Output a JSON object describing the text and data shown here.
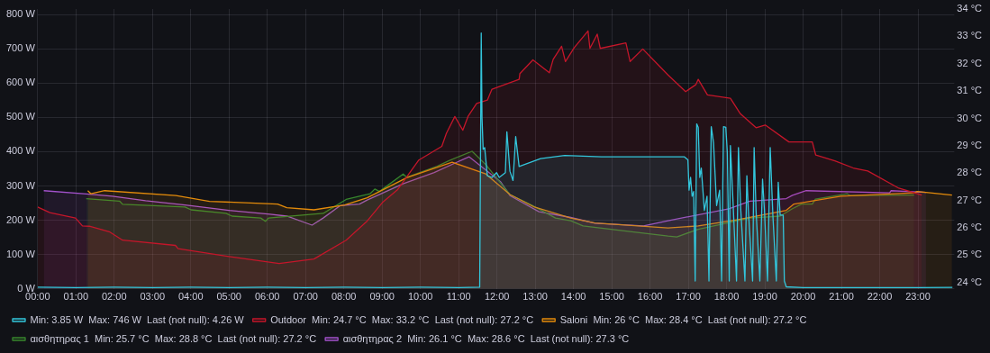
{
  "chart_data": {
    "type": "area",
    "grid": true,
    "legend": "bottom",
    "marker": "none",
    "line_style": "solid",
    "xlim": [
      0,
      23.95
    ],
    "xticks": [
      {
        "value": 0,
        "label": "00:00"
      },
      {
        "value": 1,
        "label": "01:00"
      },
      {
        "value": 2,
        "label": "02:00"
      },
      {
        "value": 3,
        "label": "03:00"
      },
      {
        "value": 4,
        "label": "04:00"
      },
      {
        "value": 5,
        "label": "05:00"
      },
      {
        "value": 6,
        "label": "06:00"
      },
      {
        "value": 7,
        "label": "07:00"
      },
      {
        "value": 8,
        "label": "08:00"
      },
      {
        "value": 9,
        "label": "09:00"
      },
      {
        "value": 10,
        "label": "10:00"
      },
      {
        "value": 11,
        "label": "11:00"
      },
      {
        "value": 12,
        "label": "12:00"
      },
      {
        "value": 13,
        "label": "13:00"
      },
      {
        "value": 14,
        "label": "14:00"
      },
      {
        "value": 15,
        "label": "15:00"
      },
      {
        "value": 16,
        "label": "16:00"
      },
      {
        "value": 17,
        "label": "17:00"
      },
      {
        "value": 18,
        "label": "18:00"
      },
      {
        "value": 19,
        "label": "19:00"
      },
      {
        "value": 20,
        "label": "20:00"
      },
      {
        "value": 21,
        "label": "21:00"
      },
      {
        "value": 22,
        "label": "22:00"
      },
      {
        "value": 23,
        "label": "23:00"
      }
    ],
    "ylim": [
      0,
      816
    ],
    "yticks": [
      {
        "value": 0,
        "label": "0 W"
      },
      {
        "value": 100,
        "label": "100 W"
      },
      {
        "value": 200,
        "label": "200 W"
      },
      {
        "value": 300,
        "label": "300 W"
      },
      {
        "value": 400,
        "label": "400 W"
      },
      {
        "value": 500,
        "label": "500 W"
      },
      {
        "value": 600,
        "label": "600 W"
      },
      {
        "value": 700,
        "label": "700 W"
      },
      {
        "value": 800,
        "label": "800 W"
      }
    ],
    "y2lim": [
      23.77,
      34
    ],
    "y2ticks": [
      {
        "value": 24,
        "label": "24 °C"
      },
      {
        "value": 25,
        "label": "25 °C"
      },
      {
        "value": 26,
        "label": "26 °C"
      },
      {
        "value": 27,
        "label": "27 °C"
      },
      {
        "value": 28,
        "label": "28 °C"
      },
      {
        "value": 29,
        "label": "29 °C"
      },
      {
        "value": 30,
        "label": "30 °C"
      },
      {
        "value": 31,
        "label": "31 °C"
      },
      {
        "value": 32,
        "label": "32 °C"
      },
      {
        "value": 33,
        "label": "33 °C"
      },
      {
        "value": 34,
        "label": "34 °C"
      }
    ],
    "series": [
      {
        "name": "Min: 3.85 W  Max: 746 W  Last (not null): 4.26 W",
        "color": "#33c6dc",
        "axis": "y",
        "x": [
          0,
          1,
          2,
          3,
          4,
          5,
          6,
          7,
          8,
          9,
          10,
          11,
          11.55,
          11.59,
          11.61,
          11.64,
          11.68,
          11.75,
          11.87,
          11.99,
          12.06,
          12.22,
          12.26,
          12.34,
          12.42,
          12.49,
          12.58,
          13.14,
          13.77,
          14.73,
          16.47,
          16.9,
          16.99,
          17.02,
          17.06,
          17.1,
          17.14,
          17.18,
          17.22,
          17.26,
          17.3,
          17.34,
          17.42,
          17.49,
          17.54,
          17.6,
          17.66,
          17.74,
          17.82,
          17.87,
          17.92,
          17.98,
          18.02,
          18.07,
          18.1,
          18.17,
          18.26,
          18.31,
          18.37,
          18.48,
          18.53,
          18.57,
          18.68,
          18.72,
          18.77,
          18.87,
          18.94,
          18.99,
          19.07,
          19.14,
          19.21,
          19.3,
          19.35,
          19.4,
          19.48,
          19.51,
          19.56,
          20,
          21,
          22,
          23,
          23.9
        ],
        "values": [
          5,
          4,
          5,
          4,
          5,
          4,
          5,
          4,
          5,
          4,
          5,
          4,
          5,
          746,
          499,
          407,
          412,
          330,
          325,
          339,
          325,
          339,
          458,
          343,
          316,
          444,
          357,
          380,
          389,
          385,
          385,
          385,
          376,
          288,
          325,
          270,
          284,
          23,
          481,
          471,
          325,
          352,
          229,
          270,
          23,
          473,
          426,
          243,
          288,
          23,
          473,
          471,
          398,
          23,
          418,
          252,
          23,
          412,
          234,
          23,
          330,
          229,
          23,
          412,
          229,
          23,
          320,
          229,
          23,
          412,
          215,
          23,
          311,
          215,
          215,
          23,
          6,
          4,
          4,
          4,
          4,
          4.26
        ]
      },
      {
        "name": "Outdoor  Min: 24.7 °C  Max: 33.2 °C  Last (not null): 27.2 °C",
        "color": "#c4162a",
        "axis": "y2",
        "x": [
          0,
          0.32,
          0.99,
          1.17,
          1.35,
          1.87,
          2.22,
          3.6,
          3.67,
          5.0,
          6.31,
          7.22,
          8.06,
          8.61,
          9.01,
          9.4,
          9.96,
          10.56,
          10.68,
          10.9,
          11.11,
          11.25,
          11.47,
          11.75,
          11.87,
          12.58,
          12.6,
          12.94,
          13.37,
          13.47,
          13.69,
          13.79,
          14.02,
          14.38,
          14.43,
          14.62,
          14.7,
          15.37,
          15.48,
          15.81,
          16.19,
          16.47,
          16.93,
          17.2,
          17.26,
          17.5,
          18.1,
          18.36,
          18.77,
          19.01,
          19.63,
          20.24,
          20.33,
          20.83,
          21.31,
          21.69,
          22.5,
          23.1
        ],
        "values": [
          26.76,
          26.56,
          26.36,
          26.07,
          26.06,
          25.86,
          25.55,
          25.36,
          25.24,
          24.95,
          24.7,
          24.86,
          25.55,
          26.25,
          26.93,
          27.39,
          28.48,
          28.98,
          29.46,
          30.07,
          29.57,
          30.09,
          30.55,
          30.67,
          31.07,
          31.43,
          31.64,
          32.14,
          31.67,
          32.16,
          32.64,
          32.08,
          32.59,
          33.2,
          32.56,
          33.08,
          32.56,
          32.76,
          32.08,
          32.54,
          31.99,
          31.59,
          30.98,
          31.24,
          31.43,
          30.86,
          30.74,
          30.17,
          29.66,
          29.76,
          29.14,
          29.14,
          28.66,
          28.45,
          28.19,
          28.08,
          27.45,
          27.2
        ]
      },
      {
        "name": "Saloni  Min: 26 °C  Max: 28.4 °C  Last (not null): 27.2 °C",
        "color": "#e38b0b",
        "axis": "y2",
        "x": [
          1.31,
          1.39,
          1.75,
          3.61,
          4.49,
          6.27,
          6.51,
          7.22,
          8.02,
          8.61,
          9.64,
          10.83,
          11.71,
          12.34,
          12.98,
          13.93,
          14.56,
          16.47,
          17.26,
          18.3,
          19.56,
          19.76,
          20.28,
          20.99,
          22.9,
          22.98,
          23.89
        ],
        "values": [
          27.36,
          27.25,
          27.36,
          27.18,
          26.97,
          26.87,
          26.74,
          26.66,
          26.84,
          27.1,
          27.83,
          28.4,
          27.97,
          27.22,
          26.76,
          26.36,
          26.18,
          26.0,
          26.07,
          26.3,
          26.64,
          26.87,
          26.99,
          27.16,
          27.28,
          27.33,
          27.2
        ]
      },
      {
        "name": "αισθητηρας 1  Min: 25.7 °C  Max: 28.8 °C  Last (not null): 27.2 °C",
        "color": "#37872d",
        "axis": "y2",
        "x": [
          1.27,
          2.14,
          2.22,
          3.85,
          4.01,
          4.92,
          5.08,
          5.83,
          5.95,
          6.03,
          7.46,
          8.06,
          8.61,
          8.69,
          8.81,
          8.93,
          9.55,
          9.64,
          10.44,
          10.75,
          11.35,
          11.71,
          12.34,
          12.9,
          13.53,
          13.93,
          14.25,
          16.47,
          16.7,
          17.26,
          18.61,
          19.4,
          19.72,
          19.96,
          20.24,
          20.32,
          21.15,
          21.23,
          22.9
        ],
        "values": [
          27.07,
          26.98,
          26.86,
          26.76,
          26.66,
          26.53,
          26.43,
          26.36,
          26.24,
          26.36,
          26.53,
          27.04,
          27.22,
          27.25,
          27.42,
          27.33,
          27.97,
          27.85,
          28.25,
          28.46,
          28.8,
          28.31,
          27.22,
          26.84,
          26.36,
          26.26,
          26.07,
          25.7,
          25.67,
          25.95,
          26.36,
          26.43,
          26.7,
          26.87,
          26.87,
          27.05,
          27.25,
          27.18,
          27.2
        ]
      },
      {
        "name": "αισθητηρας 2  Min: 26.1 °C  Max: 28.6 °C  Last (not null): 27.3 °C",
        "color": "#a352cc",
        "axis": "y2",
        "x": [
          0.16,
          1.27,
          1.95,
          2.82,
          3.85,
          5.0,
          6.07,
          6.51,
          7.17,
          7.46,
          7.9,
          8.41,
          8.61,
          9.56,
          10.36,
          11.27,
          12.1,
          12.34,
          13.1,
          13.93,
          14.56,
          15.83,
          16.47,
          18.06,
          18.61,
          19.56,
          19.72,
          20.08,
          22.26,
          22.3,
          23.21
        ],
        "values": [
          27.36,
          27.24,
          27.16,
          26.99,
          26.84,
          26.64,
          26.5,
          26.43,
          26.1,
          26.36,
          26.81,
          26.87,
          27.02,
          27.62,
          28.02,
          28.6,
          27.68,
          27.18,
          26.59,
          26.38,
          26.17,
          26.07,
          26.26,
          26.7,
          26.98,
          27.07,
          27.19,
          27.36,
          27.28,
          27.36,
          27.3
        ]
      }
    ]
  }
}
